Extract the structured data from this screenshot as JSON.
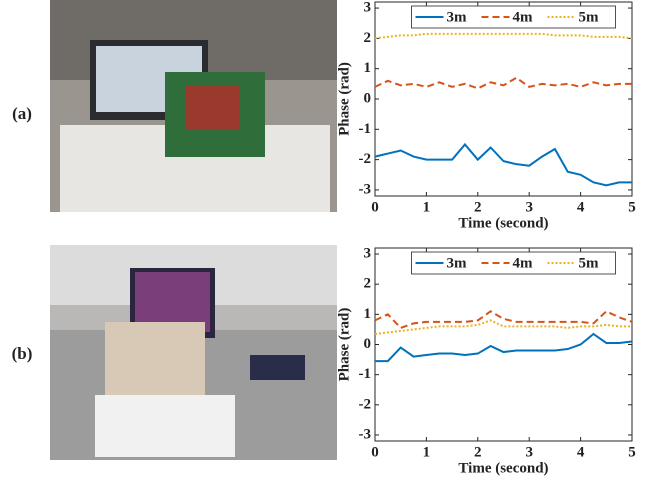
{
  "chart_data": [
    {
      "type": "line",
      "panel_label": "(a)",
      "x": [
        0,
        0.25,
        0.5,
        0.75,
        1,
        1.25,
        1.5,
        1.75,
        2,
        2.25,
        2.5,
        2.75,
        3,
        3.25,
        3.5,
        3.75,
        4,
        4.25,
        4.5,
        4.75,
        5
      ],
      "series": [
        {
          "name": "3m",
          "color": "#0072BD",
          "dash": "solid",
          "values": [
            -1.9,
            -1.8,
            -1.7,
            -1.9,
            -2.0,
            -2.0,
            -2.0,
            -1.5,
            -2.0,
            -1.6,
            -2.05,
            -2.15,
            -2.2,
            -1.9,
            -1.65,
            -2.4,
            -2.5,
            -2.75,
            -2.85,
            -2.75,
            -2.75
          ]
        },
        {
          "name": "4m",
          "color": "#D95319",
          "dash": "dashed",
          "values": [
            0.4,
            0.6,
            0.45,
            0.5,
            0.4,
            0.55,
            0.4,
            0.5,
            0.35,
            0.55,
            0.45,
            0.7,
            0.4,
            0.5,
            0.45,
            0.5,
            0.4,
            0.55,
            0.45,
            0.5,
            0.5
          ]
        },
        {
          "name": "5m",
          "color": "#EDB120",
          "dash": "dotted",
          "values": [
            2.0,
            2.05,
            2.1,
            2.1,
            2.15,
            2.15,
            2.15,
            2.15,
            2.15,
            2.15,
            2.15,
            2.15,
            2.15,
            2.15,
            2.1,
            2.1,
            2.1,
            2.05,
            2.05,
            2.05,
            2.0
          ]
        }
      ],
      "xlim": [
        0,
        5
      ],
      "ylim": [
        -3.2,
        3.2
      ],
      "xticks": [
        0,
        1,
        2,
        3,
        4,
        5
      ],
      "yticks": [
        -3,
        -2,
        -1,
        0,
        1,
        2,
        3
      ],
      "xlabel": "Time (second)",
      "ylabel": "Phase (rad)",
      "legend": "upper center"
    },
    {
      "type": "line",
      "panel_label": "(b)",
      "x": [
        0,
        0.25,
        0.5,
        0.75,
        1,
        1.25,
        1.5,
        1.75,
        2,
        2.25,
        2.5,
        2.75,
        3,
        3.25,
        3.5,
        3.75,
        4,
        4.25,
        4.5,
        4.75,
        5
      ],
      "series": [
        {
          "name": "3m",
          "color": "#0072BD",
          "dash": "solid",
          "values": [
            -0.55,
            -0.55,
            -0.1,
            -0.4,
            -0.35,
            -0.3,
            -0.3,
            -0.35,
            -0.3,
            -0.05,
            -0.25,
            -0.2,
            -0.2,
            -0.2,
            -0.2,
            -0.15,
            0.0,
            0.35,
            0.05,
            0.05,
            0.1
          ]
        },
        {
          "name": "4m",
          "color": "#D95319",
          "dash": "dashed",
          "values": [
            0.8,
            1.0,
            0.55,
            0.7,
            0.75,
            0.75,
            0.75,
            0.75,
            0.8,
            1.1,
            0.85,
            0.75,
            0.75,
            0.75,
            0.75,
            0.75,
            0.75,
            0.7,
            1.1,
            0.9,
            0.75
          ]
        },
        {
          "name": "5m",
          "color": "#EDB120",
          "dash": "dotted",
          "values": [
            0.35,
            0.4,
            0.45,
            0.5,
            0.55,
            0.6,
            0.6,
            0.6,
            0.65,
            0.8,
            0.6,
            0.6,
            0.6,
            0.6,
            0.6,
            0.55,
            0.6,
            0.6,
            0.65,
            0.6,
            0.6
          ]
        }
      ],
      "xlim": [
        0,
        5
      ],
      "ylim": [
        -3.2,
        3.2
      ],
      "xticks": [
        0,
        1,
        2,
        3,
        4,
        5
      ],
      "yticks": [
        -3,
        -2,
        -1,
        0,
        1,
        2,
        3
      ],
      "xlabel": "Time (second)",
      "ylabel": "Phase (rad)",
      "legend": "upper center"
    }
  ]
}
